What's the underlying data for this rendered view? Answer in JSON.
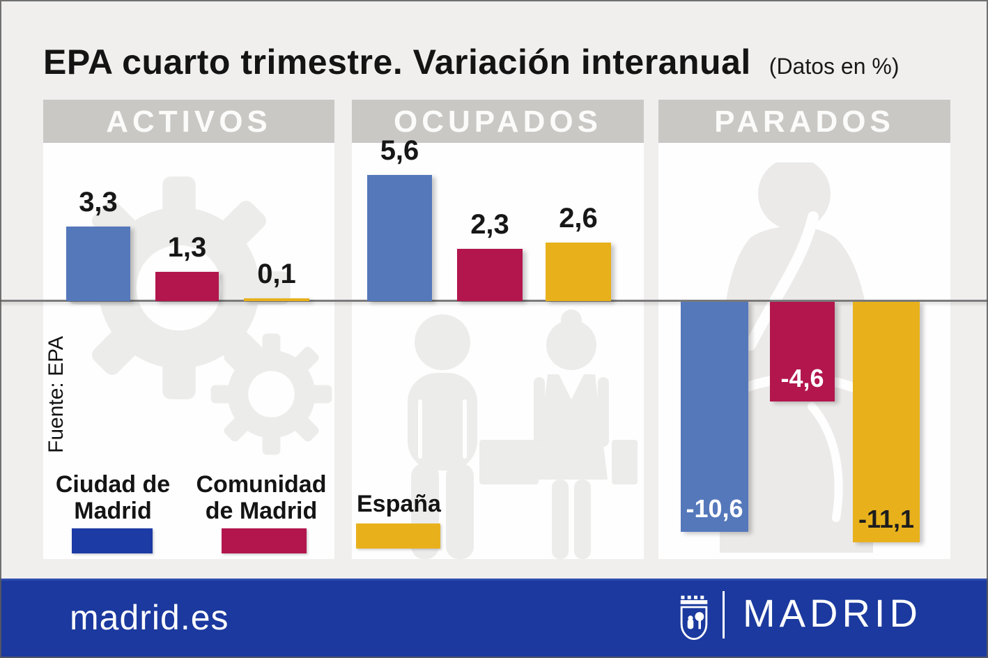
{
  "title": {
    "main": "EPA cuarto trimestre. Variación interanual",
    "note": "(Datos en %)"
  },
  "source_note": "Fuente: EPA",
  "panels": {
    "activos": "ACTIVOS",
    "ocupados": "OCUPADOS",
    "parados": "PARADOS"
  },
  "legend": {
    "ciudad": {
      "line1": "Ciudad de",
      "line2": "Madrid",
      "color": "#1d3ba5"
    },
    "comunidad": {
      "line1": "Comunidad",
      "line2": "de Madrid",
      "color": "#b2164d"
    },
    "espana": {
      "label": "España",
      "color": "#e8b11c"
    }
  },
  "chart_data": {
    "type": "bar",
    "title": "EPA cuarto trimestre. Variación interanual",
    "subtitle": "(Datos en %)",
    "units": "%",
    "categories": [
      "ACTIVOS",
      "OCUPADOS",
      "PARADOS"
    ],
    "series": [
      {
        "name": "Ciudad de Madrid",
        "color": "#5578bb",
        "values": [
          3.3,
          5.6,
          -10.6
        ]
      },
      {
        "name": "Comunidad de Madrid",
        "color": "#b2164d",
        "values": [
          1.3,
          2.3,
          -4.6
        ]
      },
      {
        "name": "España",
        "color": "#e8b11c",
        "values": [
          0.1,
          2.6,
          -11.1
        ]
      }
    ],
    "value_labels": {
      "activos": [
        "3,3",
        "1,3",
        "0,1"
      ],
      "ocupados": [
        "5,6",
        "2,3",
        "2,6"
      ],
      "parados": [
        "-10,6",
        "-4,6",
        "-11,1"
      ]
    },
    "baseline": 0,
    "grid": false,
    "legend_position": "bottom-left",
    "source": "Fuente: EPA"
  },
  "footer": {
    "url": "madrid.es",
    "brand": "MADRID"
  },
  "icons": {
    "activos_watermark": "gears-watermark",
    "ocupados_watermark": "workers-watermark",
    "parados_watermark": "unemployed-person-watermark",
    "footer_crest": "madrid-coat-of-arms"
  },
  "colors": {
    "background": "#f0efee",
    "panel": "#fefefe",
    "panel_header": "#cac8c5",
    "axis_line": "#7b7b7b",
    "footer": "#1b399e"
  }
}
